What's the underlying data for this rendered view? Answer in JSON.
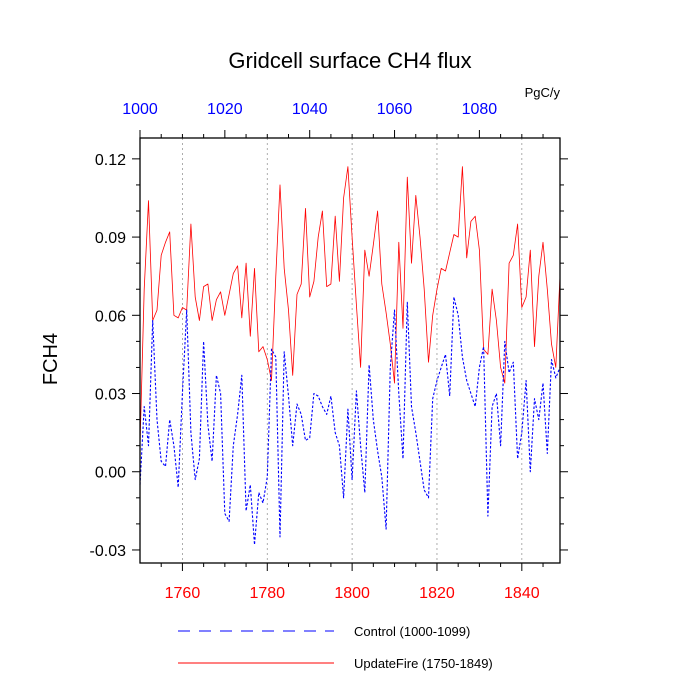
{
  "chart_data": {
    "type": "line",
    "title": "Gridcell surface CH4 flux",
    "units": "PgC/y",
    "ylabel": "FCH4",
    "ylim": [
      -0.035,
      0.128
    ],
    "yticks": [
      -0.03,
      0.0,
      0.03,
      0.06,
      0.09,
      0.12
    ],
    "ytick_labels": [
      "-0.03",
      "0.00",
      "0.03",
      "0.06",
      "0.09",
      "0.12"
    ],
    "bottom_axis": {
      "range": [
        1750,
        1849
      ],
      "ticks": [
        1760,
        1780,
        1800,
        1820,
        1840
      ],
      "labels": [
        "1760",
        "1780",
        "1800",
        "1820",
        "1840"
      ],
      "color": "#ff0000"
    },
    "top_axis": {
      "range": [
        1000,
        1099
      ],
      "ticks": [
        1000,
        1020,
        1040,
        1060,
        1080
      ],
      "labels": [
        "1000",
        "1020",
        "1040",
        "1060",
        "1080"
      ],
      "color": "#0000ff"
    },
    "grid": "dotted vertical lines at bottom-axis ticks",
    "legend_position": "bottom",
    "series": [
      {
        "name": "UpdateFire (1750-1849)",
        "color": "#ff0000",
        "style": "solid",
        "axis": "bottom",
        "x_start": 1750,
        "values": [
          0.01,
          0.07,
          0.104,
          0.058,
          0.062,
          0.083,
          0.088,
          0.092,
          0.06,
          0.059,
          0.063,
          0.062,
          0.095,
          0.067,
          0.058,
          0.071,
          0.072,
          0.058,
          0.066,
          0.069,
          0.06,
          0.068,
          0.076,
          0.079,
          0.059,
          0.08,
          0.052,
          0.078,
          0.046,
          0.048,
          0.043,
          0.035,
          0.075,
          0.11,
          0.078,
          0.062,
          0.037,
          0.068,
          0.072,
          0.101,
          0.067,
          0.073,
          0.09,
          0.1,
          0.071,
          0.072,
          0.098,
          0.073,
          0.105,
          0.117,
          0.09,
          0.064,
          0.04,
          0.085,
          0.075,
          0.087,
          0.1,
          0.072,
          0.061,
          0.049,
          0.034,
          0.088,
          0.055,
          0.113,
          0.08,
          0.106,
          0.09,
          0.07,
          0.042,
          0.06,
          0.07,
          0.078,
          0.077,
          0.084,
          0.091,
          0.09,
          0.117,
          0.082,
          0.096,
          0.098,
          0.085,
          0.047,
          0.045,
          0.07,
          0.058,
          0.04,
          0.034,
          0.08,
          0.083,
          0.095,
          0.063,
          0.067,
          0.085,
          0.048,
          0.075,
          0.088,
          0.07,
          0.049,
          0.04,
          0.075
        ]
      },
      {
        "name": "Control (1000-1099)",
        "color": "#0000ff",
        "style": "dashed",
        "axis": "top",
        "x_start": 1000,
        "values": [
          -0.005,
          0.025,
          0.01,
          0.058,
          0.02,
          0.004,
          0.002,
          0.02,
          0.01,
          -0.006,
          0.03,
          0.062,
          0.015,
          -0.003,
          0.005,
          0.05,
          0.018,
          0.004,
          0.037,
          0.03,
          -0.016,
          -0.019,
          0.01,
          0.022,
          0.037,
          -0.015,
          -0.005,
          -0.028,
          -0.008,
          -0.012,
          -0.002,
          0.047,
          0.044,
          -0.025,
          0.046,
          0.029,
          0.01,
          0.026,
          0.022,
          0.012,
          0.013,
          0.03,
          0.029,
          0.025,
          0.022,
          0.029,
          0.015,
          0.01,
          -0.01,
          0.024,
          -0.003,
          0.031,
          0.01,
          -0.008,
          0.041,
          0.02,
          0.008,
          -0.002,
          -0.022,
          0.04,
          0.062,
          0.03,
          0.005,
          0.065,
          0.025,
          0.015,
          0.004,
          -0.007,
          -0.01,
          0.028,
          0.035,
          0.04,
          0.045,
          0.029,
          0.067,
          0.06,
          0.044,
          0.035,
          0.03,
          0.025,
          0.04,
          0.048,
          -0.017,
          0.025,
          0.03,
          0.01,
          0.05,
          0.038,
          0.042,
          0.005,
          0.015,
          0.035,
          0.0,
          0.028,
          0.02,
          0.034,
          0.007,
          0.043,
          0.036,
          0.04
        ]
      }
    ]
  }
}
